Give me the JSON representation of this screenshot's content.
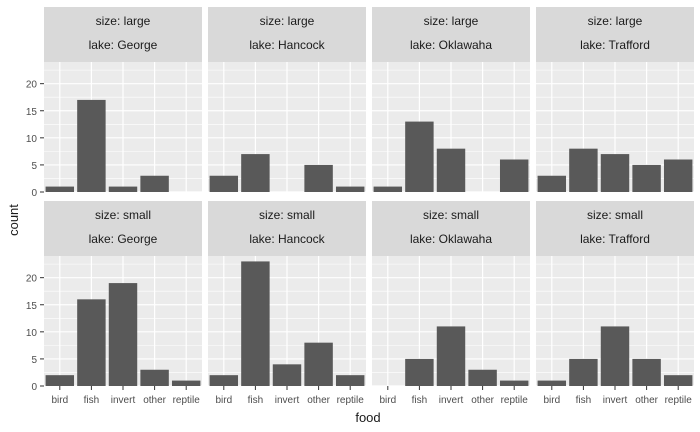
{
  "chart_data": {
    "type": "bar",
    "xlabel": "food",
    "ylabel": "count",
    "categories": [
      "bird",
      "fish",
      "invert",
      "other",
      "reptile"
    ],
    "ylim": [
      0,
      24
    ],
    "yticks": [
      0,
      5,
      10,
      15,
      20
    ],
    "grid": true,
    "colors": {
      "bar": "#595959",
      "panel_bg": "#EBEBEB",
      "strip_bg": "#D9D9D9",
      "grid_major": "#FFFFFF",
      "text": "#1A1A1A",
      "tick_text": "#4D4D4D"
    },
    "panels": [
      {
        "size_label": "size: large",
        "lake_label": "lake: George",
        "values": [
          1,
          17,
          1,
          3,
          null
        ]
      },
      {
        "size_label": "size: large",
        "lake_label": "lake: Hancock",
        "values": [
          3,
          7,
          null,
          5,
          1
        ]
      },
      {
        "size_label": "size: large",
        "lake_label": "lake: Oklawaha",
        "values": [
          1,
          13,
          8,
          null,
          6
        ]
      },
      {
        "size_label": "size: large",
        "lake_label": "lake: Trafford",
        "values": [
          3,
          8,
          7,
          5,
          6
        ]
      },
      {
        "size_label": "size: small",
        "lake_label": "lake: George",
        "values": [
          2,
          16,
          19,
          3,
          1
        ]
      },
      {
        "size_label": "size: small",
        "lake_label": "lake: Hancock",
        "values": [
          2,
          23,
          4,
          8,
          2
        ]
      },
      {
        "size_label": "size: small",
        "lake_label": "lake: Oklawaha",
        "values": [
          null,
          5,
          11,
          3,
          1
        ]
      },
      {
        "size_label": "size: small",
        "lake_label": "lake: Trafford",
        "values": [
          1,
          5,
          11,
          5,
          2
        ]
      }
    ]
  }
}
